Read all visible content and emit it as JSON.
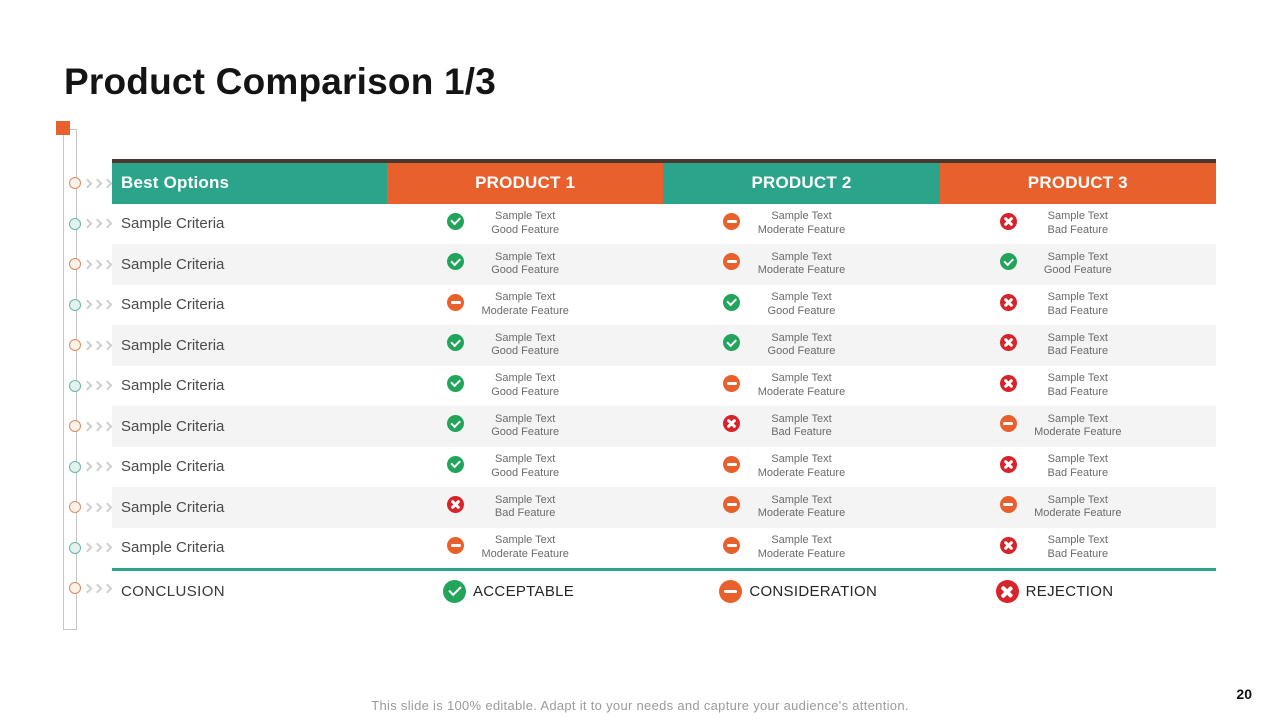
{
  "slide": {
    "title": "Product Comparison 1/3",
    "footer": "This slide is 100% editable. Adapt it to your needs and capture your audience's attention.",
    "page_number": "20"
  },
  "colors": {
    "teal": "#2aa58c",
    "orange": "#e8602c",
    "green": "#23a45b",
    "red": "#d8232a",
    "row_alt": "#f4f4f4",
    "header_top_border": "#4a372e"
  },
  "table": {
    "headers": [
      {
        "label": "Best Options",
        "color": "teal"
      },
      {
        "label": "PRODUCT 1",
        "color": "orange"
      },
      {
        "label": "PRODUCT 2",
        "color": "teal"
      },
      {
        "label": "PRODUCT 3",
        "color": "orange"
      }
    ],
    "rows": [
      {
        "criteria": "Sample Criteria",
        "cells": [
          {
            "status": "good",
            "text": "Sample Text",
            "feature": "Good Feature"
          },
          {
            "status": "moderate",
            "text": "Sample Text",
            "feature": "Moderate Feature"
          },
          {
            "status": "bad",
            "text": "Sample Text",
            "feature": "Bad Feature"
          }
        ]
      },
      {
        "criteria": "Sample Criteria",
        "cells": [
          {
            "status": "good",
            "text": "Sample Text",
            "feature": "Good Feature"
          },
          {
            "status": "moderate",
            "text": "Sample Text",
            "feature": "Moderate Feature"
          },
          {
            "status": "good",
            "text": "Sample Text",
            "feature": "Good Feature"
          }
        ]
      },
      {
        "criteria": "Sample Criteria",
        "cells": [
          {
            "status": "moderate",
            "text": "Sample Text",
            "feature": "Moderate Feature"
          },
          {
            "status": "good",
            "text": "Sample Text",
            "feature": "Good Feature"
          },
          {
            "status": "bad",
            "text": "Sample Text",
            "feature": "Bad Feature"
          }
        ]
      },
      {
        "criteria": "Sample Criteria",
        "cells": [
          {
            "status": "good",
            "text": "Sample Text",
            "feature": "Good Feature"
          },
          {
            "status": "good",
            "text": "Sample Text",
            "feature": "Good Feature"
          },
          {
            "status": "bad",
            "text": "Sample Text",
            "feature": "Bad Feature"
          }
        ]
      },
      {
        "criteria": "Sample Criteria",
        "cells": [
          {
            "status": "good",
            "text": "Sample Text",
            "feature": "Good Feature"
          },
          {
            "status": "moderate",
            "text": "Sample Text",
            "feature": "Moderate Feature"
          },
          {
            "status": "bad",
            "text": "Sample Text",
            "feature": "Bad Feature"
          }
        ]
      },
      {
        "criteria": "Sample Criteria",
        "cells": [
          {
            "status": "good",
            "text": "Sample Text",
            "feature": "Good Feature"
          },
          {
            "status": "bad",
            "text": "Sample Text",
            "feature": "Bad Feature"
          },
          {
            "status": "moderate",
            "text": "Sample Text",
            "feature": "Moderate Feature"
          }
        ]
      },
      {
        "criteria": "Sample Criteria",
        "cells": [
          {
            "status": "good",
            "text": "Sample Text",
            "feature": "Good Feature"
          },
          {
            "status": "moderate",
            "text": "Sample Text",
            "feature": "Moderate Feature"
          },
          {
            "status": "bad",
            "text": "Sample Text",
            "feature": "Bad Feature"
          }
        ]
      },
      {
        "criteria": "Sample Criteria",
        "cells": [
          {
            "status": "bad",
            "text": "Sample Text",
            "feature": "Bad Feature"
          },
          {
            "status": "moderate",
            "text": "Sample Text",
            "feature": "Moderate Feature"
          },
          {
            "status": "moderate",
            "text": "Sample Text",
            "feature": "Moderate Feature"
          }
        ]
      },
      {
        "criteria": "Sample Criteria",
        "cells": [
          {
            "status": "moderate",
            "text": "Sample Text",
            "feature": "Moderate Feature"
          },
          {
            "status": "moderate",
            "text": "Sample Text",
            "feature": "Moderate Feature"
          },
          {
            "status": "bad",
            "text": "Sample Text",
            "feature": "Bad Feature"
          }
        ]
      }
    ],
    "conclusion": {
      "label": "CONCLUSION",
      "items": [
        {
          "status": "good",
          "label": "ACCEPTABLE"
        },
        {
          "status": "moderate",
          "label": "CONSIDERATION"
        },
        {
          "status": "bad",
          "label": "REJECTION"
        }
      ]
    }
  }
}
